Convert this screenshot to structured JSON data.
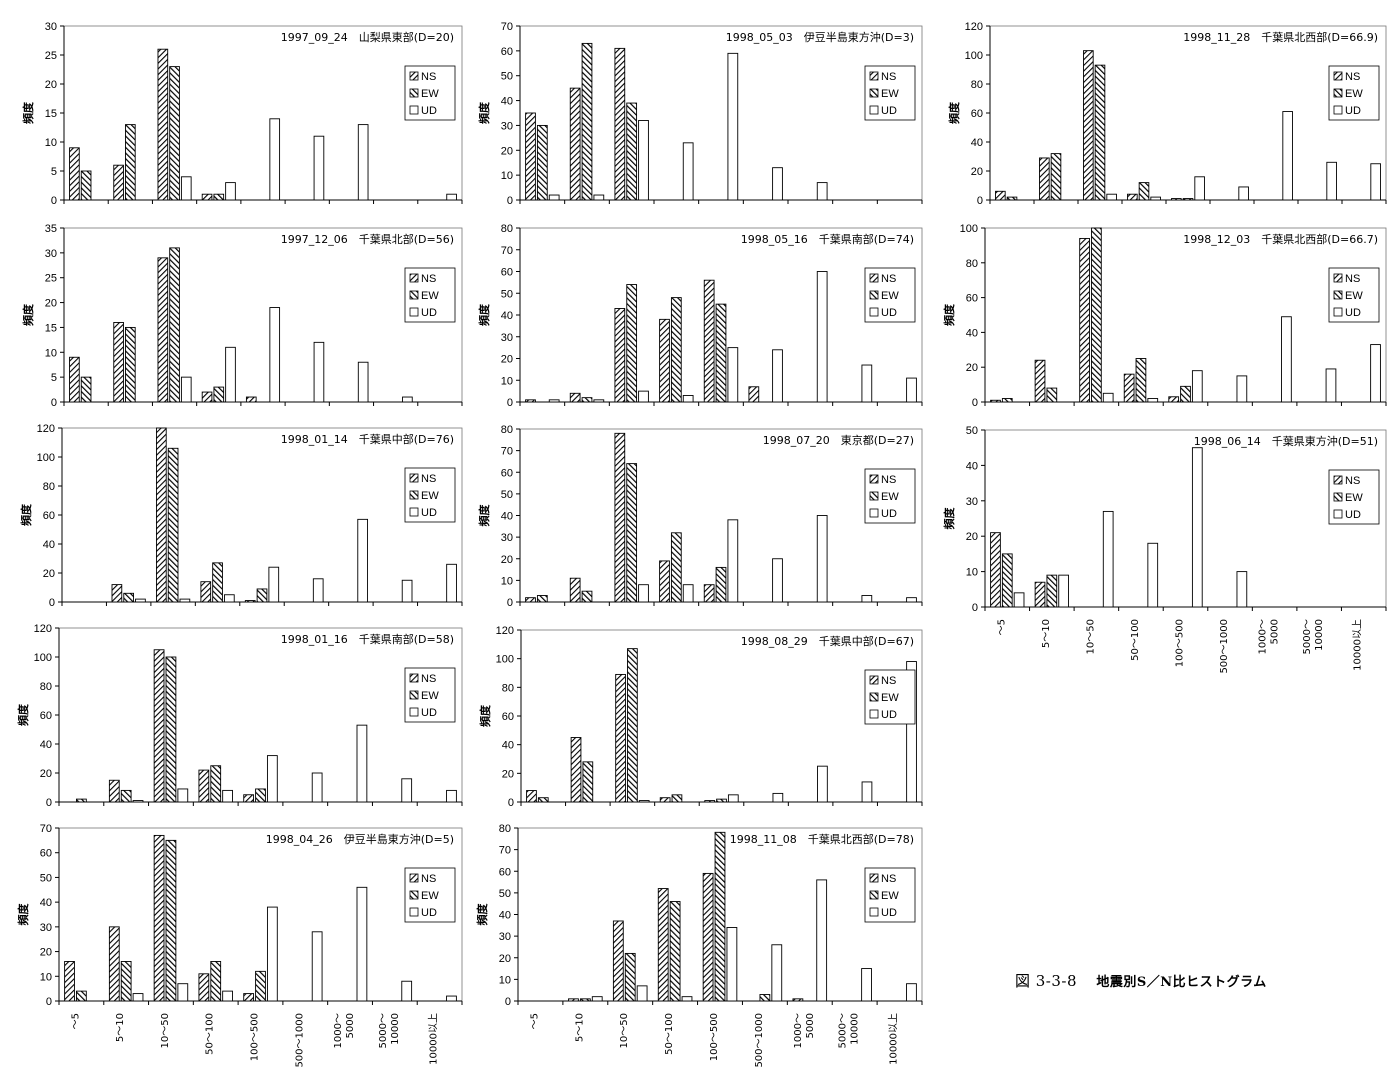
{
  "figure": {
    "number": "図 3-3-8",
    "title": "地震別S／N比ヒストグラム"
  },
  "categories": [
    "～5",
    "5～10",
    "10～50",
    "50～100",
    "100～500",
    "500～1000",
    "1000～\n5000",
    "5000～\n10000",
    "10000以上"
  ],
  "legend": [
    "NS",
    "EW",
    "UD"
  ],
  "chart_data": [
    {
      "type": "bar",
      "title": "1997_09_24　山梨県東部(D=20)",
      "ylabel": "頻度",
      "ylim": [
        0,
        30
      ],
      "yticks": [
        0,
        5,
        10,
        15,
        20,
        25,
        30
      ],
      "series": [
        {
          "name": "NS",
          "values": [
            9,
            6,
            26,
            1,
            0,
            0,
            0,
            0,
            0
          ]
        },
        {
          "name": "EW",
          "values": [
            5,
            13,
            23,
            1,
            0,
            0,
            0,
            0,
            0
          ]
        },
        {
          "name": "UD",
          "values": [
            0,
            0,
            4,
            3,
            14,
            11,
            13,
            0,
            1
          ]
        }
      ]
    },
    {
      "type": "bar",
      "title": "1998_05_03　伊豆半島東方沖(D=3)",
      "ylabel": "頻度",
      "ylim": [
        0,
        70
      ],
      "yticks": [
        0,
        10,
        20,
        30,
        40,
        50,
        60,
        70
      ],
      "series": [
        {
          "name": "NS",
          "values": [
            35,
            45,
            61,
            0,
            0,
            0,
            0,
            0,
            0
          ]
        },
        {
          "name": "EW",
          "values": [
            30,
            63,
            39,
            0,
            0,
            0,
            0,
            0,
            0
          ]
        },
        {
          "name": "UD",
          "values": [
            2,
            2,
            32,
            23,
            59,
            13,
            7,
            0,
            0
          ]
        }
      ]
    },
    {
      "type": "bar",
      "title": "1998_11_28　千葉県北西部(D=66.9)",
      "ylabel": "頻度",
      "ylim": [
        0,
        120
      ],
      "yticks": [
        0,
        20,
        40,
        60,
        80,
        100,
        120
      ],
      "series": [
        {
          "name": "NS",
          "values": [
            6,
            29,
            103,
            4,
            1,
            0,
            0,
            0,
            0
          ]
        },
        {
          "name": "EW",
          "values": [
            2,
            32,
            93,
            12,
            1,
            0,
            0,
            0,
            0
          ]
        },
        {
          "name": "UD",
          "values": [
            0,
            0,
            4,
            2,
            16,
            9,
            61,
            26,
            25
          ]
        }
      ]
    },
    {
      "type": "bar",
      "title": "1997_12_06　千葉県北部(D=56)",
      "ylabel": "頻度",
      "ylim": [
        0,
        35
      ],
      "yticks": [
        0,
        5,
        10,
        15,
        20,
        25,
        30,
        35
      ],
      "series": [
        {
          "name": "NS",
          "values": [
            9,
            16,
            29,
            2,
            1,
            0,
            0,
            0,
            0
          ]
        },
        {
          "name": "EW",
          "values": [
            5,
            15,
            31,
            3,
            0,
            0,
            0,
            0,
            0
          ]
        },
        {
          "name": "UD",
          "values": [
            0,
            0,
            5,
            11,
            19,
            12,
            8,
            1,
            0
          ]
        }
      ]
    },
    {
      "type": "bar",
      "title": "1998_05_16　千葉県南部(D=74)",
      "ylabel": "頻度",
      "ylim": [
        0,
        80
      ],
      "yticks": [
        0,
        10,
        20,
        30,
        40,
        50,
        60,
        70,
        80
      ],
      "series": [
        {
          "name": "NS",
          "values": [
            1,
            4,
            43,
            38,
            56,
            7,
            0,
            0,
            0
          ]
        },
        {
          "name": "EW",
          "values": [
            0,
            2,
            54,
            48,
            45,
            0,
            0,
            0,
            0
          ]
        },
        {
          "name": "UD",
          "values": [
            1,
            1,
            5,
            3,
            25,
            24,
            60,
            17,
            11
          ]
        }
      ]
    },
    {
      "type": "bar",
      "title": "1998_12_03　千葉県北西部(D=66.7)",
      "ylabel": "頻度",
      "ylim": [
        0,
        100
      ],
      "yticks": [
        0,
        20,
        40,
        60,
        80,
        100
      ],
      "series": [
        {
          "name": "NS",
          "values": [
            1,
            24,
            94,
            16,
            3,
            0,
            0,
            0,
            0
          ]
        },
        {
          "name": "EW",
          "values": [
            2,
            8,
            100,
            25,
            9,
            0,
            0,
            0,
            0
          ]
        },
        {
          "name": "UD",
          "values": [
            0,
            0,
            5,
            2,
            18,
            15,
            49,
            19,
            33
          ]
        }
      ]
    },
    {
      "type": "bar",
      "title": "1998_01_14　千葉県中部(D=76)",
      "ylabel": "頻度",
      "ylim": [
        0,
        120
      ],
      "yticks": [
        0,
        20,
        40,
        60,
        80,
        100,
        120
      ],
      "series": [
        {
          "name": "NS",
          "values": [
            0,
            12,
            120,
            14,
            1,
            0,
            0,
            0,
            0
          ]
        },
        {
          "name": "EW",
          "values": [
            0,
            6,
            106,
            27,
            9,
            0,
            0,
            0,
            0
          ]
        },
        {
          "name": "UD",
          "values": [
            0,
            2,
            2,
            5,
            24,
            16,
            57,
            15,
            26
          ]
        }
      ]
    },
    {
      "type": "bar",
      "title": "1998_07_20　東京都(D=27)",
      "ylabel": "頻度",
      "ylim": [
        0,
        80
      ],
      "yticks": [
        0,
        10,
        20,
        30,
        40,
        50,
        60,
        70,
        80
      ],
      "series": [
        {
          "name": "NS",
          "values": [
            2,
            11,
            78,
            19,
            8,
            0,
            0,
            0,
            0
          ]
        },
        {
          "name": "EW",
          "values": [
            3,
            5,
            64,
            32,
            16,
            0,
            0,
            0,
            0
          ]
        },
        {
          "name": "UD",
          "values": [
            0,
            0,
            8,
            8,
            38,
            20,
            40,
            3,
            2
          ]
        }
      ]
    },
    {
      "type": "bar",
      "title": "1998_06_14　千葉県東方沖(D=51)",
      "ylabel": "頻度",
      "ylim": [
        0,
        50
      ],
      "yticks": [
        0,
        10,
        20,
        30,
        40,
        50
      ],
      "xlabels": true,
      "series": [
        {
          "name": "NS",
          "values": [
            21,
            7,
            0,
            0,
            0,
            0,
            0,
            0,
            0
          ]
        },
        {
          "name": "EW",
          "values": [
            15,
            9,
            0,
            0,
            0,
            0,
            0,
            0,
            0
          ]
        },
        {
          "name": "UD",
          "values": [
            4,
            9,
            27,
            18,
            45,
            10,
            0,
            0,
            0
          ]
        }
      ]
    },
    {
      "type": "bar",
      "title": "1998_01_16　千葉県南部(D=58)",
      "ylabel": "頻度",
      "ylim": [
        0,
        120
      ],
      "yticks": [
        0,
        20,
        40,
        60,
        80,
        100,
        120
      ],
      "series": [
        {
          "name": "NS",
          "values": [
            0,
            15,
            105,
            22,
            5,
            0,
            0,
            0,
            0
          ]
        },
        {
          "name": "EW",
          "values": [
            2,
            8,
            100,
            25,
            9,
            0,
            0,
            0,
            0
          ]
        },
        {
          "name": "UD",
          "values": [
            0,
            1,
            9,
            8,
            32,
            20,
            53,
            16,
            8
          ]
        }
      ]
    },
    {
      "type": "bar",
      "title": "1998_08_29　千葉県中部(D=67)",
      "ylabel": "頻度",
      "ylim": [
        0,
        120
      ],
      "yticks": [
        0,
        20,
        40,
        60,
        80,
        100,
        120
      ],
      "series": [
        {
          "name": "NS",
          "values": [
            8,
            45,
            89,
            3,
            1,
            0,
            0,
            0,
            0
          ]
        },
        {
          "name": "EW",
          "values": [
            3,
            28,
            107,
            5,
            2,
            0,
            0,
            0,
            0
          ]
        },
        {
          "name": "UD",
          "values": [
            0,
            0,
            1,
            0,
            5,
            6,
            25,
            14,
            98
          ]
        }
      ]
    },
    {
      "type": "bar",
      "title": "1998_04_26　伊豆半島東方沖(D=5)",
      "ylabel": "頻度",
      "ylim": [
        0,
        70
      ],
      "yticks": [
        0,
        10,
        20,
        30,
        40,
        50,
        60,
        70
      ],
      "xlabels": true,
      "series": [
        {
          "name": "NS",
          "values": [
            16,
            30,
            67,
            11,
            3,
            0,
            0,
            0,
            0
          ]
        },
        {
          "name": "EW",
          "values": [
            4,
            16,
            65,
            16,
            12,
            0,
            0,
            0,
            0
          ]
        },
        {
          "name": "UD",
          "values": [
            0,
            3,
            7,
            4,
            38,
            28,
            46,
            8,
            2
          ]
        }
      ]
    },
    {
      "type": "bar",
      "title": "1998_11_08　千葉県北西部(D=78)",
      "ylabel": "頻度",
      "ylim": [
        0,
        80
      ],
      "yticks": [
        0,
        10,
        20,
        30,
        40,
        50,
        60,
        70,
        80
      ],
      "xlabels": true,
      "series": [
        {
          "name": "NS",
          "values": [
            0,
            1,
            37,
            52,
            59,
            0,
            1,
            0,
            0
          ]
        },
        {
          "name": "EW",
          "values": [
            0,
            1,
            22,
            46,
            78,
            3,
            0,
            0,
            0
          ]
        },
        {
          "name": "UD",
          "values": [
            0,
            2,
            7,
            2,
            34,
            26,
            56,
            15,
            8
          ]
        }
      ]
    }
  ]
}
